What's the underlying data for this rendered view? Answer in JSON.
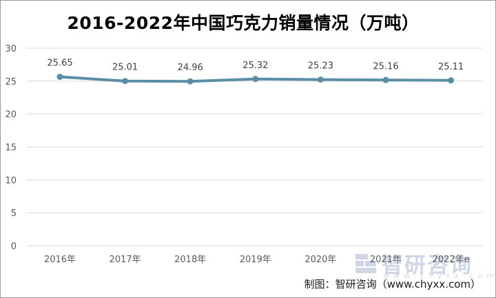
{
  "title": "2016-2022年中国巧克力销量情况（万吨）",
  "source": "制图：智研咨询（www.chyxx.com）",
  "watermark": {
    "text": "智研咨询",
    "url": "www.chyxx.com"
  },
  "colors": {
    "line": "#5b8ea6",
    "grid": "#d9d9d9",
    "axis_text": "#595959",
    "label_text": "#404040"
  },
  "chart_data": {
    "type": "line",
    "title": "2016-2022年中国巧克力销量情况（万吨）",
    "xlabel": "",
    "ylabel": "",
    "categories": [
      "2016年",
      "2017年",
      "2018年",
      "2019年",
      "2020年",
      "2021年",
      "2022年e"
    ],
    "series": [
      {
        "values": [
          25.65,
          25.01,
          24.96,
          25.32,
          25.23,
          25.16,
          25.11
        ]
      }
    ],
    "data_labels": [
      "25.65",
      "25.01",
      "24.96",
      "25.32",
      "25.23",
      "25.16",
      "25.11"
    ],
    "ylim": [
      0,
      30
    ],
    "yticks": [
      0,
      5,
      10,
      15,
      20,
      25,
      30
    ],
    "grid": true,
    "legend": "none"
  }
}
